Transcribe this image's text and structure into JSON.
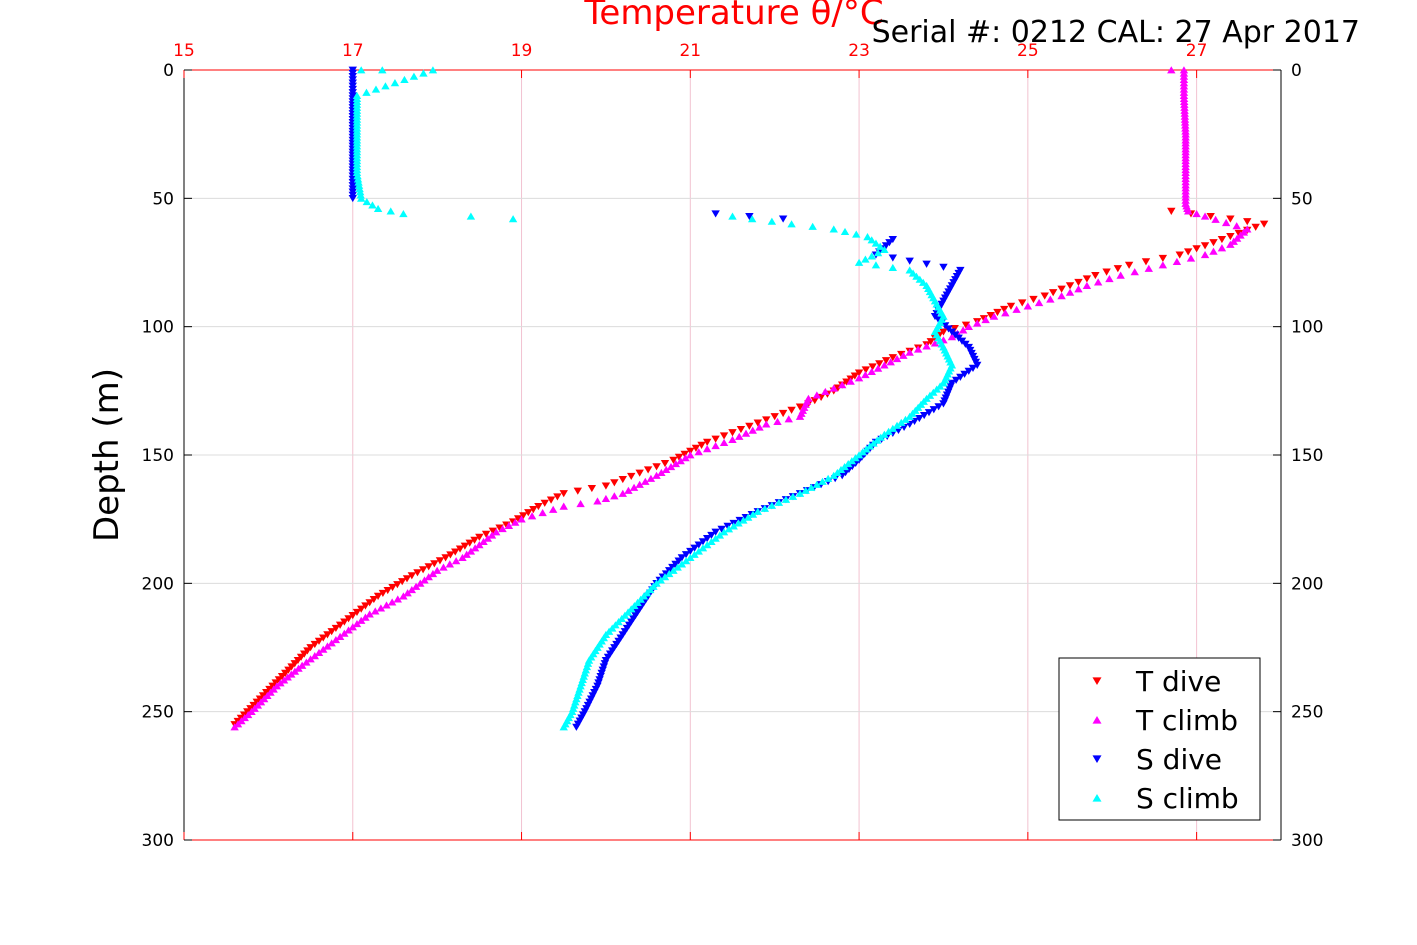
{
  "chart_data": {
    "type": "scatter",
    "title": "Temperature θ/°C",
    "subtitle": "Serial #: 0212  CAL: 27 Apr 2017",
    "ylabel": "Depth (m)",
    "xlabel": "",
    "x_axis_position": "top",
    "xlim": [
      15,
      28
    ],
    "ylim": [
      0,
      300
    ],
    "y_reversed": true,
    "xticks": [
      15,
      17,
      19,
      21,
      23,
      25,
      27
    ],
    "yticks": [
      0,
      50,
      100,
      150,
      200,
      250,
      300
    ],
    "grid": true,
    "legend_position": "bottom-right",
    "series": [
      {
        "name": "T dive",
        "color": "#ff0000",
        "marker": "triangle-down",
        "points": [
          [
            26.7,
            55
          ],
          [
            27.4,
            58
          ],
          [
            27.8,
            60
          ],
          [
            27.3,
            66
          ],
          [
            26.8,
            72
          ],
          [
            26.2,
            76
          ],
          [
            25.8,
            80
          ],
          [
            25.5,
            84
          ],
          [
            25.2,
            88
          ],
          [
            24.8,
            92
          ],
          [
            24.4,
            98
          ],
          [
            24.0,
            102
          ],
          [
            23.8,
            107
          ],
          [
            23.4,
            112
          ],
          [
            23.0,
            118
          ],
          [
            22.7,
            125
          ],
          [
            22.4,
            130
          ],
          [
            22.0,
            135
          ],
          [
            21.6,
            140
          ],
          [
            21.2,
            145
          ],
          [
            20.8,
            152
          ],
          [
            20.4,
            157
          ],
          [
            20.0,
            162
          ],
          [
            19.5,
            165
          ],
          [
            19.2,
            170
          ],
          [
            18.9,
            176
          ],
          [
            18.5,
            182
          ],
          [
            18.1,
            190
          ],
          [
            17.7,
            197
          ],
          [
            17.3,
            205
          ],
          [
            16.9,
            215
          ],
          [
            16.5,
            225
          ],
          [
            16.2,
            235
          ],
          [
            15.9,
            245
          ],
          [
            15.6,
            255
          ]
        ]
      },
      {
        "name": "T climb",
        "color": "#ff00ff",
        "marker": "triangle-up",
        "points": [
          [
            26.7,
            0
          ],
          [
            26.85,
            0
          ],
          [
            26.85,
            10
          ],
          [
            26.87,
            25
          ],
          [
            26.87,
            40
          ],
          [
            26.87,
            52
          ],
          [
            26.9,
            55
          ],
          [
            27.1,
            57
          ],
          [
            27.6,
            62
          ],
          [
            27.4,
            68
          ],
          [
            27.1,
            72
          ],
          [
            26.6,
            76
          ],
          [
            26.1,
            80
          ],
          [
            25.7,
            84
          ],
          [
            25.4,
            88
          ],
          [
            25.0,
            92
          ],
          [
            24.6,
            96
          ],
          [
            24.3,
            100
          ],
          [
            24.1,
            104
          ],
          [
            23.6,
            110
          ],
          [
            23.3,
            115
          ],
          [
            23.0,
            120
          ],
          [
            22.7,
            124
          ],
          [
            22.4,
            128
          ],
          [
            22.3,
            135
          ],
          [
            21.9,
            138
          ],
          [
            21.5,
            144
          ],
          [
            21.0,
            150
          ],
          [
            20.6,
            158
          ],
          [
            20.2,
            165
          ],
          [
            19.9,
            168
          ],
          [
            19.5,
            170
          ],
          [
            19.0,
            175
          ],
          [
            18.7,
            180
          ],
          [
            18.3,
            190
          ],
          [
            18.0,
            195
          ],
          [
            17.6,
            205
          ],
          [
            17.2,
            212
          ],
          [
            16.8,
            222
          ],
          [
            16.4,
            232
          ],
          [
            16.1,
            240
          ],
          [
            15.8,
            250
          ],
          [
            15.6,
            256
          ]
        ]
      },
      {
        "name": "S dive",
        "color": "#0000ff",
        "marker": "triangle-down",
        "points": [
          [
            17.0,
            0
          ],
          [
            17.0,
            10
          ],
          [
            17.0,
            25
          ],
          [
            17.0,
            40
          ],
          [
            17.0,
            50
          ],
          [
            21.3,
            56
          ],
          [
            22.1,
            58
          ],
          [
            23.4,
            66
          ],
          [
            23.2,
            72
          ],
          [
            24.2,
            78
          ],
          [
            24.1,
            84
          ],
          [
            24.0,
            90
          ],
          [
            23.9,
            96
          ],
          [
            24.1,
            102
          ],
          [
            24.3,
            108
          ],
          [
            24.4,
            115
          ],
          [
            24.1,
            122
          ],
          [
            24.0,
            130
          ],
          [
            23.6,
            138
          ],
          [
            23.2,
            145
          ],
          [
            23.0,
            152
          ],
          [
            22.8,
            158
          ],
          [
            22.3,
            165
          ],
          [
            21.8,
            172
          ],
          [
            21.3,
            180
          ],
          [
            20.9,
            190
          ],
          [
            20.6,
            200
          ],
          [
            20.4,
            210
          ],
          [
            20.2,
            220
          ],
          [
            20.0,
            230
          ],
          [
            19.9,
            240
          ],
          [
            19.75,
            250
          ],
          [
            19.65,
            256
          ]
        ]
      },
      {
        "name": "S climb",
        "color": "#00ffff",
        "marker": "triangle-up",
        "points": [
          [
            17.1,
            0
          ],
          [
            17.35,
            0
          ],
          [
            17.95,
            0
          ],
          [
            17.05,
            10
          ],
          [
            17.05,
            25
          ],
          [
            17.05,
            40
          ],
          [
            17.1,
            50
          ],
          [
            17.3,
            54
          ],
          [
            17.6,
            56
          ],
          [
            18.4,
            57
          ],
          [
            18.9,
            58
          ],
          [
            21.5,
            57
          ],
          [
            22.2,
            60
          ],
          [
            22.7,
            62
          ],
          [
            23.1,
            65
          ],
          [
            23.3,
            70
          ],
          [
            23.0,
            75
          ],
          [
            23.6,
            78
          ],
          [
            23.8,
            84
          ],
          [
            23.9,
            90
          ],
          [
            24.0,
            96
          ],
          [
            23.9,
            102
          ],
          [
            24.0,
            108
          ],
          [
            24.1,
            115
          ],
          [
            24.0,
            122
          ],
          [
            23.8,
            128
          ],
          [
            23.6,
            135
          ],
          [
            23.3,
            142
          ],
          [
            23.0,
            150
          ],
          [
            22.7,
            158
          ],
          [
            22.3,
            165
          ],
          [
            21.8,
            172
          ],
          [
            21.4,
            180
          ],
          [
            21.0,
            190
          ],
          [
            20.6,
            200
          ],
          [
            20.3,
            210
          ],
          [
            20.0,
            220
          ],
          [
            19.8,
            230
          ],
          [
            19.7,
            240
          ],
          [
            19.6,
            250
          ],
          [
            19.5,
            256
          ]
        ]
      }
    ]
  }
}
